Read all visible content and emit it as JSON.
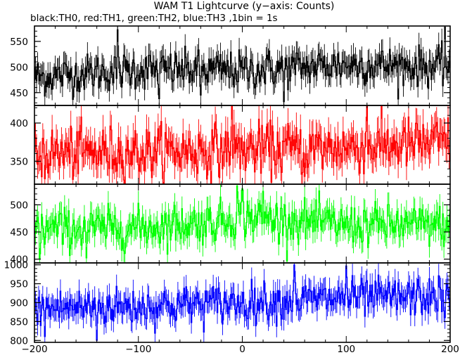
{
  "chart_data": {
    "type": "line",
    "title": "WAM T1 Lightcurve (y−axis: Counts)",
    "subtitle": "black:TH0, red:TH1, green:TH2, blue:TH3 ,1bin = 1s",
    "x_range": [
      -200,
      200
    ],
    "x_ticks": [
      -200,
      -100,
      0,
      100,
      200
    ],
    "x_tick_labels": [
      "−200",
      "−100",
      "0",
      "100",
      "200"
    ],
    "x_step": 1,
    "panels": [
      {
        "name": "TH0",
        "color": "#000000",
        "ylim": [
          425,
          580
        ],
        "y_ticks": [
          450,
          500,
          550
        ],
        "profile": [
          [
            -200,
            480
          ],
          [
            -100,
            495
          ],
          [
            0,
            493
          ],
          [
            100,
            505
          ],
          [
            200,
            500
          ]
        ],
        "noise": 22,
        "spikes": [
          [
            -120,
            573
          ],
          [
            -80,
            438
          ],
          [
            40,
            432
          ],
          [
            195,
            578
          ],
          [
            -40,
            445
          ]
        ]
      },
      {
        "name": "TH1",
        "color": "#ff0000",
        "ylim": [
          320,
          423
        ],
        "y_ticks": [
          350,
          400
        ],
        "profile": [
          [
            -200,
            360
          ],
          [
            -100,
            362
          ],
          [
            0,
            365
          ],
          [
            100,
            368
          ],
          [
            200,
            375
          ]
        ],
        "noise": 20,
        "spikes": [
          [
            -10,
            425
          ],
          [
            120,
            423
          ],
          [
            -190,
            327
          ],
          [
            60,
            330
          ]
        ]
      },
      {
        "name": "TH2",
        "color": "#00ff00",
        "ylim": [
          393,
          538
        ],
        "y_ticks": [
          400,
          450,
          500
        ],
        "profile": [
          [
            -200,
            455
          ],
          [
            -100,
            458
          ],
          [
            -20,
            470
          ],
          [
            0,
            480
          ],
          [
            20,
            475
          ],
          [
            100,
            463
          ],
          [
            200,
            462
          ]
        ],
        "noise": 22,
        "spikes": [
          [
            0,
            530
          ],
          [
            -5,
            535
          ],
          [
            -195,
            400
          ],
          [
            -150,
            402
          ],
          [
            20,
            525
          ]
        ]
      },
      {
        "name": "TH3",
        "color": "#0000ff",
        "ylim": [
          795,
          1005
        ],
        "y_ticks": [
          800,
          850,
          900,
          950,
          1000
        ],
        "profile": [
          [
            -200,
            885
          ],
          [
            -100,
            890
          ],
          [
            0,
            900
          ],
          [
            100,
            912
          ],
          [
            200,
            915
          ]
        ],
        "noise": 30,
        "spikes": [
          [
            -190,
            810
          ],
          [
            -140,
            800
          ],
          [
            50,
            1000
          ],
          [
            100,
            997
          ],
          [
            195,
            860
          ]
        ]
      }
    ]
  }
}
